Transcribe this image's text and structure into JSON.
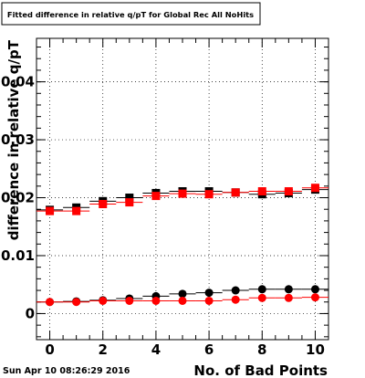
{
  "chart_data": {
    "type": "scatter",
    "title": "Fitted difference in relative q/pT for Global Rec All NoHits",
    "xlabel": "No. of Bad Points",
    "ylabel": "difference in relative q/pT",
    "xlim": [
      -0.5,
      10.5
    ],
    "ylim": [
      -0.0045,
      0.0475
    ],
    "xticks": [
      "0",
      "2",
      "4",
      "6",
      "8",
      "10"
    ],
    "yticks": [
      "0",
      "0.01",
      "0.02",
      "0.03",
      "0.04"
    ],
    "grid": true,
    "series": [
      {
        "marker": "square",
        "color": "#000000",
        "x": [
          0,
          1,
          2,
          3,
          4,
          5,
          6,
          7,
          8,
          9,
          10
        ],
        "y": [
          0.0179,
          0.0183,
          0.0194,
          0.02,
          0.0208,
          0.0211,
          0.0211,
          0.0209,
          0.0206,
          0.0208,
          0.0214
        ]
      },
      {
        "marker": "square",
        "color": "#ff0000",
        "x": [
          0,
          1,
          2,
          3,
          4,
          5,
          6,
          7,
          8,
          9,
          10
        ],
        "y": [
          0.0177,
          0.0177,
          0.0189,
          0.0192,
          0.0203,
          0.0207,
          0.0206,
          0.0209,
          0.0211,
          0.0211,
          0.0217
        ]
      },
      {
        "marker": "circle",
        "color": "#000000",
        "x": [
          0,
          1,
          2,
          3,
          4,
          5,
          6,
          7,
          8,
          9,
          10
        ],
        "y": [
          0.002,
          0.0021,
          0.0023,
          0.0026,
          0.003,
          0.0034,
          0.0036,
          0.004,
          0.0042,
          0.0042,
          0.0042
        ]
      },
      {
        "marker": "circle",
        "color": "#ff0000",
        "x": [
          0,
          1,
          2,
          3,
          4,
          5,
          6,
          7,
          8,
          9,
          10
        ],
        "y": [
          0.002,
          0.002,
          0.0022,
          0.0022,
          0.0022,
          0.0022,
          0.0022,
          0.0024,
          0.0027,
          0.0027,
          0.0028
        ]
      }
    ]
  },
  "footer": {
    "timestamp": "Sun Apr 10 08:26:29 2016"
  }
}
